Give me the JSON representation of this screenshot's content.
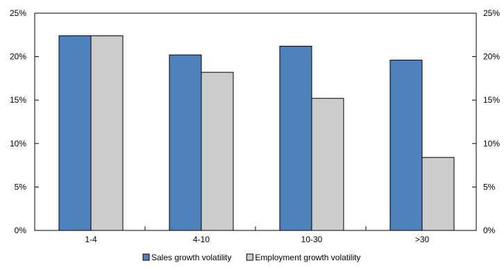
{
  "chart_data": {
    "type": "bar",
    "title": "",
    "xlabel": "",
    "ylabel": "",
    "categories": [
      "1-4",
      "4-10",
      "10-30",
      ">30"
    ],
    "series": [
      {
        "name": "Sales growth volatility",
        "values": [
          22.4,
          20.2,
          21.2,
          19.6
        ],
        "color": "#4f81bd"
      },
      {
        "name": "Employment growth volatility",
        "values": [
          22.4,
          18.2,
          15.2,
          8.4
        ],
        "color": "#cccccc"
      }
    ],
    "ylim": [
      0,
      25
    ],
    "yticks": [
      "0%",
      "5%",
      "10%",
      "15%",
      "20%",
      "25%"
    ],
    "secondary_yticks": [
      "0%",
      "5%",
      "10%",
      "15%",
      "20%",
      "25%"
    ],
    "grid": false,
    "legend_position": "bottom"
  }
}
